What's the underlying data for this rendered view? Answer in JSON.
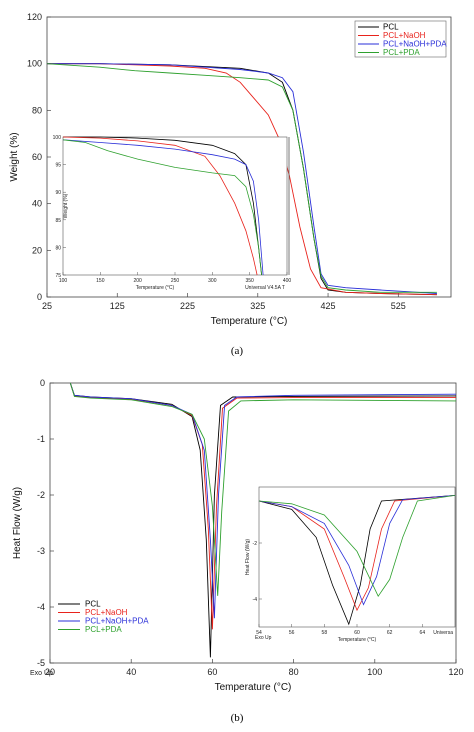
{
  "colors": {
    "PCL": "#000000",
    "PCL+NaOH": "#e8231c",
    "PCL+NaOH+PDA": "#2a2fd8",
    "PCL+PDA": "#2fa12f"
  },
  "chart_data": [
    {
      "panel": "a",
      "type": "line",
      "caption": "(a)",
      "xlabel": "Temperature (°C)",
      "ylabel": "Weight (%)",
      "xlim": [
        25,
        600
      ],
      "ylim": [
        0,
        120
      ],
      "xticks": [
        25,
        125,
        225,
        325,
        425,
        525
      ],
      "yticks": [
        0,
        20,
        40,
        60,
        80,
        100,
        120
      ],
      "legend": [
        "PCL",
        "PCL+NaOH",
        "PCL+NaOH+PDA",
        "PCL+PDA"
      ],
      "legend_position": "top-right",
      "series": [
        {
          "name": "PCL",
          "points": [
            [
              25,
              100
            ],
            [
              100,
              100
            ],
            [
              200,
              99.5
            ],
            [
              300,
              98
            ],
            [
              340,
              96
            ],
            [
              360,
              92
            ],
            [
              375,
              80
            ],
            [
              390,
              55
            ],
            [
              405,
              25
            ],
            [
              415,
              8
            ],
            [
              425,
              3
            ],
            [
              450,
              2
            ],
            [
              500,
              1.5
            ],
            [
              580,
              1
            ]
          ]
        },
        {
          "name": "PCL+NaOH",
          "points": [
            [
              25,
              100
            ],
            [
              100,
              100
            ],
            [
              200,
              99
            ],
            [
              250,
              98
            ],
            [
              280,
              96
            ],
            [
              300,
              92
            ],
            [
              320,
              85
            ],
            [
              340,
              78
            ],
            [
              355,
              68
            ],
            [
              370,
              52
            ],
            [
              385,
              30
            ],
            [
              400,
              12
            ],
            [
              415,
              4
            ],
            [
              450,
              2
            ],
            [
              500,
              1.5
            ],
            [
              580,
              1
            ]
          ]
        },
        {
          "name": "PCL+NaOH+PDA",
          "points": [
            [
              25,
              100
            ],
            [
              100,
              100
            ],
            [
              200,
              99.5
            ],
            [
              300,
              97.5
            ],
            [
              340,
              96
            ],
            [
              360,
              94
            ],
            [
              375,
              88
            ],
            [
              390,
              62
            ],
            [
              405,
              30
            ],
            [
              415,
              10
            ],
            [
              425,
              5
            ],
            [
              450,
              4
            ],
            [
              500,
              3
            ],
            [
              580,
              1.5
            ]
          ]
        },
        {
          "name": "PCL+PDA",
          "points": [
            [
              25,
              100
            ],
            [
              100,
              98.5
            ],
            [
              150,
              97
            ],
            [
              200,
              96
            ],
            [
              250,
              95
            ],
            [
              300,
              94
            ],
            [
              340,
              93
            ],
            [
              360,
              90
            ],
            [
              375,
              80
            ],
            [
              390,
              55
            ],
            [
              405,
              25
            ],
            [
              415,
              9
            ],
            [
              425,
              4
            ],
            [
              450,
              3
            ],
            [
              500,
              2
            ],
            [
              580,
              2
            ]
          ]
        }
      ],
      "inset": {
        "xlabel": "Temperature (°C)",
        "ylabel": "Weight (%)",
        "xlim": [
          100,
          400
        ],
        "ylim": [
          75,
          100
        ],
        "xticks": [
          100,
          150,
          200,
          250,
          300,
          350,
          400
        ],
        "yticks": [
          75,
          80,
          85,
          90,
          95,
          100
        ],
        "note": "Universal V4.5A T",
        "series": [
          {
            "name": "PCL",
            "points": [
              [
                100,
                100
              ],
              [
                150,
                100
              ],
              [
                200,
                99.8
              ],
              [
                250,
                99.4
              ],
              [
                300,
                98.5
              ],
              [
                330,
                97
              ],
              [
                345,
                95
              ],
              [
                355,
                88
              ],
              [
                362,
                80
              ],
              [
                366,
                75
              ]
            ]
          },
          {
            "name": "PCL+NaOH",
            "points": [
              [
                100,
                100
              ],
              [
                150,
                99.8
              ],
              [
                200,
                99.3
              ],
              [
                250,
                98.5
              ],
              [
                290,
                96.5
              ],
              [
                310,
                93
              ],
              [
                330,
                88
              ],
              [
                345,
                83
              ],
              [
                355,
                78
              ],
              [
                360,
                75
              ]
            ]
          },
          {
            "name": "PCL+NaOH+PDA",
            "points": [
              [
                100,
                99.5
              ],
              [
                150,
                99
              ],
              [
                200,
                98.5
              ],
              [
                250,
                97.8
              ],
              [
                300,
                96.8
              ],
              [
                330,
                96
              ],
              [
                345,
                95
              ],
              [
                355,
                92
              ],
              [
                362,
                85
              ],
              [
                368,
                75
              ]
            ]
          },
          {
            "name": "PCL+PDA",
            "points": [
              [
                100,
                99.5
              ],
              [
                130,
                99
              ],
              [
                160,
                97.5
              ],
              [
                200,
                96
              ],
              [
                250,
                94.5
              ],
              [
                300,
                93.5
              ],
              [
                330,
                93
              ],
              [
                345,
                91
              ],
              [
                355,
                86
              ],
              [
                362,
                80
              ],
              [
                366,
                75
              ]
            ]
          }
        ]
      }
    },
    {
      "panel": "b",
      "type": "line",
      "caption": "(b)",
      "xlabel": "Temperature (°C)",
      "ylabel": "Heat Flow (W/g)",
      "corner_note": "Exo Up",
      "xlim": [
        20,
        120
      ],
      "ylim": [
        -5,
        0
      ],
      "xticks": [
        20,
        40,
        60,
        80,
        100,
        120
      ],
      "yticks": [
        0,
        -1,
        -2,
        -3,
        -4,
        -5
      ],
      "legend": [
        "PCL",
        "PCL+NaOH",
        "PCL+NaOH+PDA",
        "PCL+PDA"
      ],
      "legend_position": "bottom-left",
      "series": [
        {
          "name": "PCL",
          "points": [
            [
              25,
              0
            ],
            [
              26,
              -0.22
            ],
            [
              30,
              -0.25
            ],
            [
              40,
              -0.28
            ],
            [
              50,
              -0.38
            ],
            [
              55,
              -0.6
            ],
            [
              57,
              -1.2
            ],
            [
              58.5,
              -2.8
            ],
            [
              59.5,
              -4.9
            ],
            [
              60.5,
              -2.0
            ],
            [
              62,
              -0.4
            ],
            [
              65,
              -0.25
            ],
            [
              80,
              -0.24
            ],
            [
              120,
              -0.23
            ]
          ]
        },
        {
          "name": "PCL+NaOH",
          "points": [
            [
              25,
              0
            ],
            [
              26,
              -0.23
            ],
            [
              30,
              -0.26
            ],
            [
              40,
              -0.29
            ],
            [
              50,
              -0.4
            ],
            [
              55,
              -0.58
            ],
            [
              57.5,
              -1.1
            ],
            [
              59,
              -2.6
            ],
            [
              60,
              -4.4
            ],
            [
              61,
              -2.2
            ],
            [
              62.5,
              -0.45
            ],
            [
              66,
              -0.27
            ],
            [
              80,
              -0.26
            ],
            [
              120,
              -0.26
            ]
          ]
        },
        {
          "name": "PCL+NaOH+PDA",
          "points": [
            [
              25,
              0
            ],
            [
              26,
              -0.22
            ],
            [
              30,
              -0.25
            ],
            [
              40,
              -0.28
            ],
            [
              50,
              -0.4
            ],
            [
              55,
              -0.56
            ],
            [
              58,
              -1.2
            ],
            [
              59.5,
              -2.8
            ],
            [
              60.5,
              -4.2
            ],
            [
              61.5,
              -2.0
            ],
            [
              63,
              -0.4
            ],
            [
              66,
              -0.25
            ],
            [
              80,
              -0.22
            ],
            [
              120,
              -0.2
            ]
          ]
        },
        {
          "name": "PCL+PDA",
          "points": [
            [
              25,
              0
            ],
            [
              26,
              -0.24
            ],
            [
              30,
              -0.27
            ],
            [
              40,
              -0.3
            ],
            [
              50,
              -0.42
            ],
            [
              55,
              -0.56
            ],
            [
              58,
              -1.0
            ],
            [
              60,
              -2.2
            ],
            [
              61.3,
              -3.8
            ],
            [
              62.3,
              -2.3
            ],
            [
              64,
              -0.5
            ],
            [
              67,
              -0.32
            ],
            [
              80,
              -0.3
            ],
            [
              120,
              -0.32
            ]
          ]
        }
      ],
      "inset": {
        "xlabel": "Temperature (°C)",
        "ylabel": "Heat Flow (W/g)",
        "corner_note": "Exo Up",
        "note": "Universa",
        "xlim": [
          54,
          66
        ],
        "ylim": [
          -5,
          0
        ],
        "xticks": [
          54,
          56,
          58,
          60,
          62,
          64
        ],
        "yticks": [
          -2,
          -4
        ],
        "series": [
          {
            "name": "PCL",
            "points": [
              [
                54,
                -0.5
              ],
              [
                56,
                -0.8
              ],
              [
                57.5,
                -1.8
              ],
              [
                58.5,
                -3.5
              ],
              [
                59.5,
                -4.9
              ],
              [
                60.2,
                -3.5
              ],
              [
                60.8,
                -1.5
              ],
              [
                61.5,
                -0.5
              ],
              [
                66,
                -0.3
              ]
            ]
          },
          {
            "name": "PCL+NaOH",
            "points": [
              [
                54,
                -0.5
              ],
              [
                56,
                -0.7
              ],
              [
                58,
                -1.5
              ],
              [
                59.2,
                -3.2
              ],
              [
                60,
                -4.4
              ],
              [
                60.7,
                -3.6
              ],
              [
                61.5,
                -1.5
              ],
              [
                62.3,
                -0.5
              ],
              [
                66,
                -0.3
              ]
            ]
          },
          {
            "name": "PCL+NaOH+PDA",
            "points": [
              [
                54,
                -0.5
              ],
              [
                56,
                -0.7
              ],
              [
                58,
                -1.3
              ],
              [
                59.5,
                -2.8
              ],
              [
                60.4,
                -4.2
              ],
              [
                61.2,
                -3.2
              ],
              [
                62,
                -1.3
              ],
              [
                62.8,
                -0.45
              ],
              [
                66,
                -0.3
              ]
            ]
          },
          {
            "name": "PCL+PDA",
            "points": [
              [
                54,
                -0.5
              ],
              [
                56,
                -0.6
              ],
              [
                58,
                -1.0
              ],
              [
                60,
                -2.3
              ],
              [
                61.3,
                -3.9
              ],
              [
                62,
                -3.3
              ],
              [
                62.8,
                -1.8
              ],
              [
                63.7,
                -0.5
              ],
              [
                66,
                -0.3
              ]
            ]
          }
        ]
      }
    }
  ]
}
